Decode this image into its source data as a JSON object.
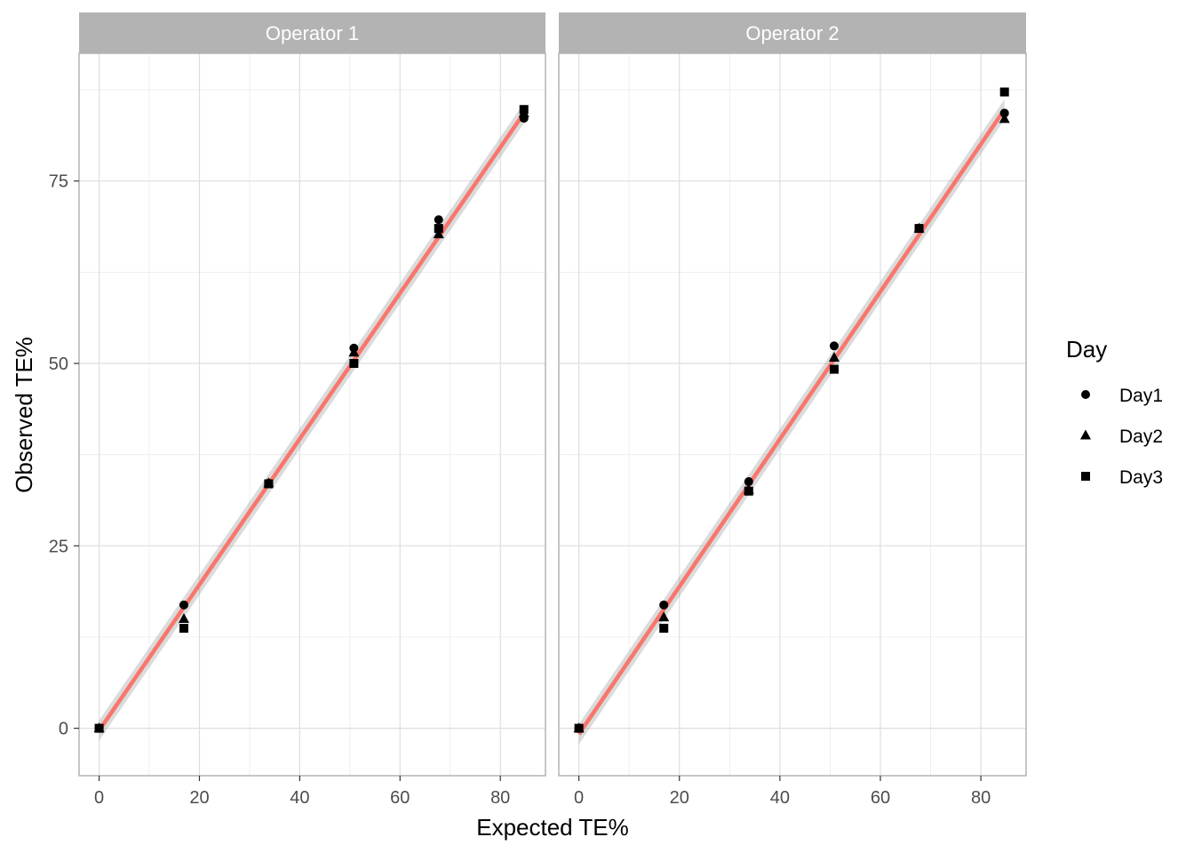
{
  "chart_data": {
    "type": "scatter",
    "xlabel": "Expected TE%",
    "ylabel": "Observed TE%",
    "xlim": [
      -4,
      89
    ],
    "ylim": [
      -6.5,
      92.5
    ],
    "x_ticks": [
      0,
      20,
      40,
      60,
      80
    ],
    "y_ticks": [
      0,
      25,
      50,
      75
    ],
    "grid": true,
    "legend": {
      "title": "Day",
      "position": "right",
      "entries": [
        "Day1",
        "Day2",
        "Day3"
      ]
    },
    "colors": {
      "fit_line": "#f8766d",
      "ribbon": "#999999",
      "strip": "#b3b3b3",
      "points": "#000000"
    },
    "panels": [
      {
        "title": "Operator 1",
        "fit": {
          "x": [
            0,
            84.7
          ],
          "y": [
            -0.3,
            84.3
          ]
        },
        "series": [
          {
            "name": "Day1",
            "shape": "circle",
            "points": [
              [
                0,
                0
              ],
              [
                16.9,
                16.9
              ],
              [
                33.8,
                33.6
              ],
              [
                50.8,
                52.1
              ],
              [
                67.7,
                69.7
              ],
              [
                84.7,
                83.6
              ]
            ]
          },
          {
            "name": "Day2",
            "shape": "triangle",
            "points": [
              [
                0,
                0
              ],
              [
                16.9,
                15.0
              ],
              [
                33.8,
                33.6
              ],
              [
                50.8,
                51.5
              ],
              [
                67.7,
                67.7
              ],
              [
                84.7,
                84.3
              ]
            ]
          },
          {
            "name": "Day3",
            "shape": "square",
            "points": [
              [
                0,
                0
              ],
              [
                16.9,
                13.7
              ],
              [
                33.8,
                33.5
              ],
              [
                50.8,
                50.0
              ],
              [
                67.7,
                68.5
              ],
              [
                84.7,
                84.8
              ]
            ]
          }
        ]
      },
      {
        "title": "Operator 2",
        "fit": {
          "x": [
            0,
            84.7
          ],
          "y": [
            -0.8,
            84.8
          ]
        },
        "series": [
          {
            "name": "Day1",
            "shape": "circle",
            "points": [
              [
                0,
                0
              ],
              [
                16.9,
                16.9
              ],
              [
                33.8,
                33.8
              ],
              [
                50.8,
                52.4
              ],
              [
                67.7,
                68.5
              ],
              [
                84.7,
                84.3
              ]
            ]
          },
          {
            "name": "Day2",
            "shape": "triangle",
            "points": [
              [
                0,
                0
              ],
              [
                16.9,
                15.2
              ],
              [
                33.8,
                32.7
              ],
              [
                50.8,
                50.8
              ],
              [
                67.7,
                68.5
              ],
              [
                84.7,
                83.5
              ]
            ]
          },
          {
            "name": "Day3",
            "shape": "square",
            "points": [
              [
                0,
                0
              ],
              [
                16.9,
                13.7
              ],
              [
                33.8,
                32.5
              ],
              [
                50.8,
                49.2
              ],
              [
                67.7,
                68.5
              ],
              [
                84.7,
                87.2
              ]
            ]
          }
        ]
      }
    ]
  }
}
